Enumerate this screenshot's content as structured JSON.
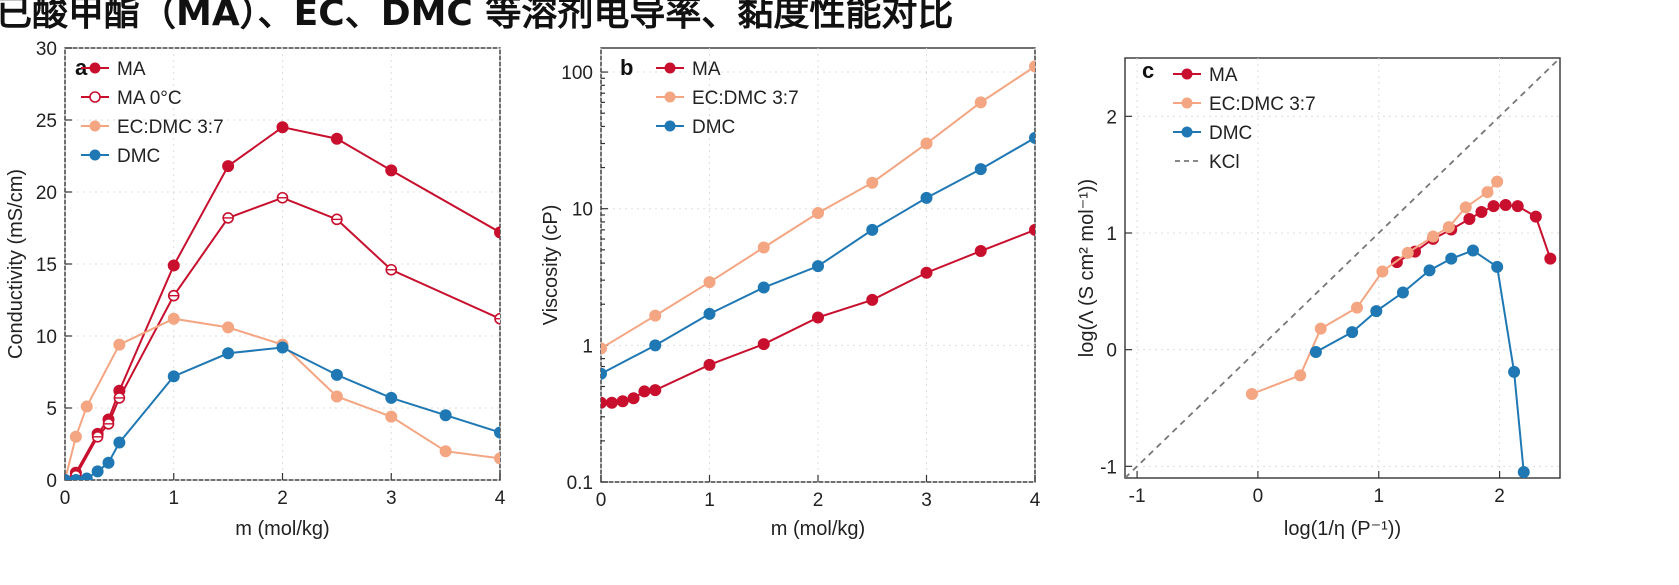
{
  "header": {
    "title": "已酸甲酯（MA）、EC、DMC 等溶剂电导率、黏度性能对比"
  },
  "colors": {
    "MA": "#c8102e",
    "EC:DMC 3:7": "#f4a582",
    "DMC": "#1f78b4",
    "KCl": "#777777"
  },
  "chart_data": [
    {
      "panel_label": "a",
      "type": "line",
      "xlabel": "m (mol/kg)",
      "ylabel": "Conductivity (mS/cm)",
      "xlim": [
        0,
        4
      ],
      "ylim": [
        0,
        30
      ],
      "xticks": [
        "0",
        "1",
        "2",
        "3",
        "4"
      ],
      "yticks": [
        "0",
        "5",
        "10",
        "15",
        "20",
        "25",
        "30"
      ],
      "legend_position": "top-left",
      "series": [
        {
          "name": "MA",
          "marker": "filled",
          "x": [
            0,
            0.1,
            0.3,
            0.4,
            0.5,
            1,
            1.5,
            2,
            2.5,
            3,
            4
          ],
          "y": [
            0,
            0.5,
            3.2,
            4.2,
            6.2,
            14.9,
            21.8,
            24.5,
            23.7,
            21.5,
            17.2
          ]
        },
        {
          "name": "MA 0°C",
          "marker": "open",
          "x": [
            0,
            0.1,
            0.3,
            0.4,
            0.5,
            1,
            1.5,
            2,
            2.5,
            3,
            4
          ],
          "y": [
            0,
            0.3,
            3.0,
            3.9,
            5.7,
            12.8,
            18.2,
            19.6,
            18.1,
            14.6,
            11.2
          ]
        },
        {
          "name": "EC:DMC 3:7",
          "marker": "filled",
          "x": [
            0,
            0.1,
            0.2,
            0.5,
            1,
            1.5,
            2,
            2.5,
            3,
            3.5,
            4
          ],
          "y": [
            0,
            3.0,
            5.1,
            9.4,
            11.2,
            10.6,
            9.4,
            5.8,
            4.4,
            2.0,
            1.5
          ]
        },
        {
          "name": "DMC",
          "marker": "filled",
          "x": [
            0,
            0.1,
            0.2,
            0.3,
            0.4,
            0.5,
            1,
            1.5,
            2,
            2.5,
            3,
            3.5,
            4
          ],
          "y": [
            0,
            0,
            0.1,
            0.6,
            1.2,
            2.6,
            7.2,
            8.8,
            9.2,
            7.3,
            5.7,
            4.5,
            3.3
          ]
        }
      ]
    },
    {
      "panel_label": "b",
      "type": "line",
      "xlabel": "m (mol/kg)",
      "ylabel": "Viscosity (cP)",
      "yscale": "log",
      "xlim": [
        0,
        4
      ],
      "ylim": [
        0.1,
        150
      ],
      "xticks": [
        "0",
        "1",
        "2",
        "3",
        "4"
      ],
      "yticks": [
        "0.1",
        "1",
        "10",
        "100"
      ],
      "legend_position": "top-left",
      "series": [
        {
          "name": "MA",
          "x": [
            0,
            0.1,
            0.2,
            0.3,
            0.4,
            0.5,
            1,
            1.5,
            2,
            2.5,
            3,
            3.5,
            4
          ],
          "y": [
            0.38,
            0.38,
            0.39,
            0.41,
            0.46,
            0.47,
            0.72,
            1.02,
            1.6,
            2.15,
            3.4,
            4.9,
            7.0
          ]
        },
        {
          "name": "EC:DMC 3:7",
          "x": [
            0,
            0.5,
            1,
            1.5,
            2,
            2.5,
            3,
            3.5,
            4
          ],
          "y": [
            0.95,
            1.65,
            2.9,
            5.2,
            9.3,
            15.5,
            30,
            60,
            110
          ]
        },
        {
          "name": "DMC",
          "x": [
            0,
            0.5,
            1,
            1.5,
            2,
            2.5,
            3,
            3.5,
            4
          ],
          "y": [
            0.62,
            1.0,
            1.7,
            2.65,
            3.8,
            7.0,
            12,
            19.5,
            33
          ]
        }
      ]
    },
    {
      "panel_label": "c",
      "type": "line",
      "xlabel": "log(1/η (P⁻¹))",
      "ylabel": "log(Λ (S cm² mol⁻¹))",
      "xlim": [
        -1.1,
        2.5
      ],
      "ylim": [
        -1.1,
        2.5
      ],
      "xticks": [
        "-1",
        "0",
        "1",
        "2"
      ],
      "yticks": [
        "-1",
        "0",
        "1",
        "2"
      ],
      "legend_position": "top-left",
      "series": [
        {
          "name": "MA",
          "x": [
            1.15,
            1.3,
            1.45,
            1.6,
            1.75,
            1.85,
            1.95,
            2.05,
            2.15,
            2.3,
            2.42
          ],
          "y": [
            0.75,
            0.84,
            0.95,
            1.03,
            1.12,
            1.18,
            1.23,
            1.24,
            1.23,
            1.14,
            0.78
          ]
        },
        {
          "name": "EC:DMC 3:7",
          "x": [
            -0.05,
            0.35,
            0.52,
            0.82,
            1.03,
            1.24,
            1.45,
            1.58,
            1.72,
            1.9,
            1.98
          ],
          "y": [
            -0.38,
            -0.22,
            0.18,
            0.36,
            0.67,
            0.83,
            0.97,
            1.05,
            1.22,
            1.35,
            1.44
          ]
        },
        {
          "name": "DMC",
          "x": [
            0.48,
            0.78,
            0.98,
            1.2,
            1.42,
            1.6,
            1.78,
            1.98,
            2.12,
            2.2
          ],
          "y": [
            -0.02,
            0.15,
            0.33,
            0.49,
            0.68,
            0.78,
            0.85,
            0.71,
            -0.19,
            -1.05
          ]
        },
        {
          "name": "KCl",
          "style": "dashed",
          "x": [
            -1.1,
            2.5
          ],
          "y": [
            -1.1,
            2.5
          ]
        }
      ]
    }
  ]
}
